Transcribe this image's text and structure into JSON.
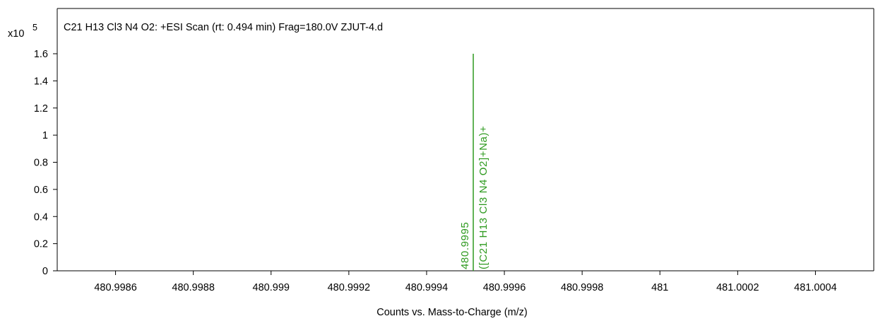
{
  "chart_data": {
    "type": "line",
    "title": "C21 H13 Cl3 N4 O2: +ESI Scan (rt: 0.494 min) Frag=180.0V ZJUT-4.d",
    "xlabel": "Counts vs. Mass-to-Charge (m/z)",
    "ylabel": "",
    "y_multiplier_base": "x10",
    "y_multiplier_exp": "5",
    "xlim": [
      480.99845,
      481.00055
    ],
    "ylim": [
      0,
      1.6
    ],
    "x_ticks": [
      480.9986,
      480.9988,
      480.999,
      480.9992,
      480.9994,
      480.9996,
      480.9998,
      481,
      481.0002,
      481.0004
    ],
    "x_tick_labels": [
      "480.9986",
      "480.9988",
      "480.999",
      "480.9992",
      "480.9994",
      "480.9996",
      "480.9998",
      "481",
      "481.0002",
      "481.0004"
    ],
    "y_ticks": [
      0,
      0.2,
      0.4,
      0.6,
      0.8,
      1,
      1.2,
      1.4,
      1.6
    ],
    "y_tick_labels": [
      "0",
      "0.2",
      "0.4",
      "0.6",
      "0.8",
      "1",
      "1.2",
      "1.4",
      "1.6"
    ],
    "grid": false,
    "series": [
      {
        "peaks": [
          {
            "x": 480.99952,
            "y": 1.6,
            "mz_label": "480.9995",
            "ion_label": "([C21 H13 Cl3 N4 O2]+Na)+"
          }
        ],
        "color": "#2e9a1f"
      }
    ]
  }
}
